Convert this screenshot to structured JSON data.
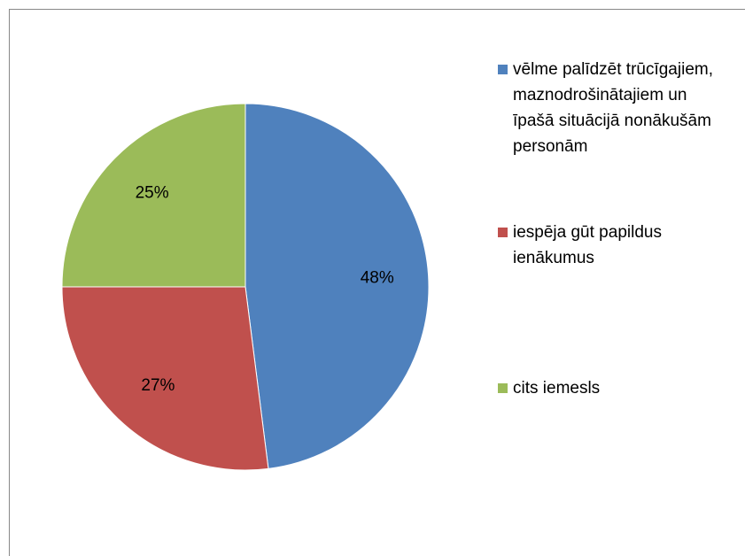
{
  "chart_data": {
    "type": "pie",
    "categories": [
      "vēlme palīdzēt trūcīgajiem, maznodrošinātajiem un īpašā situācijā nonākušām personām",
      "iespēja gūt papildus ienākumus",
      "cits iemesls"
    ],
    "values": [
      48,
      27,
      25
    ],
    "value_labels": [
      "48%",
      "27%",
      "25%"
    ],
    "colors": [
      "#4f81bd",
      "#c0504d",
      "#9bbb59"
    ],
    "legend": "right"
  }
}
